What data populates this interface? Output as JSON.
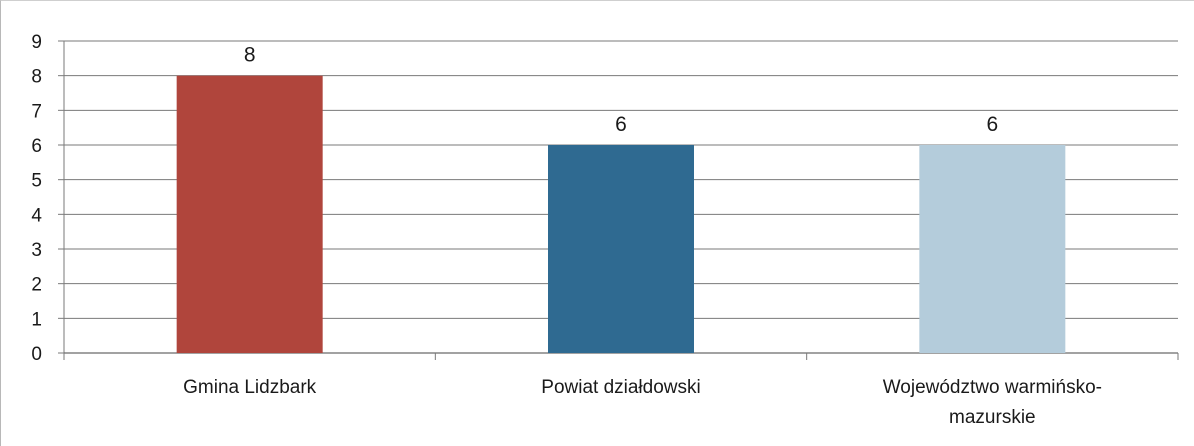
{
  "chart_data": {
    "type": "bar",
    "categories": [
      "Gmina Lidzbark",
      "Powiat działdowski",
      "Województwo warmińsko-mazurskie"
    ],
    "category_lines": [
      [
        "Gmina Lidzbark"
      ],
      [
        "Powiat działdowski"
      ],
      [
        "Województwo warmińsko-",
        "mazurskie"
      ]
    ],
    "values": [
      8,
      6,
      6
    ],
    "data_labels": [
      "8",
      "6",
      "6"
    ],
    "bar_colors": [
      "#b0453c",
      "#2f6a91",
      "#b4ccdb"
    ],
    "title": "",
    "xlabel": "",
    "ylabel": "",
    "ylim": [
      0,
      9
    ],
    "yticks": [
      "0",
      "1",
      "2",
      "3",
      "4",
      "5",
      "6",
      "7",
      "8",
      "9"
    ],
    "grid": true,
    "legend": "none"
  }
}
